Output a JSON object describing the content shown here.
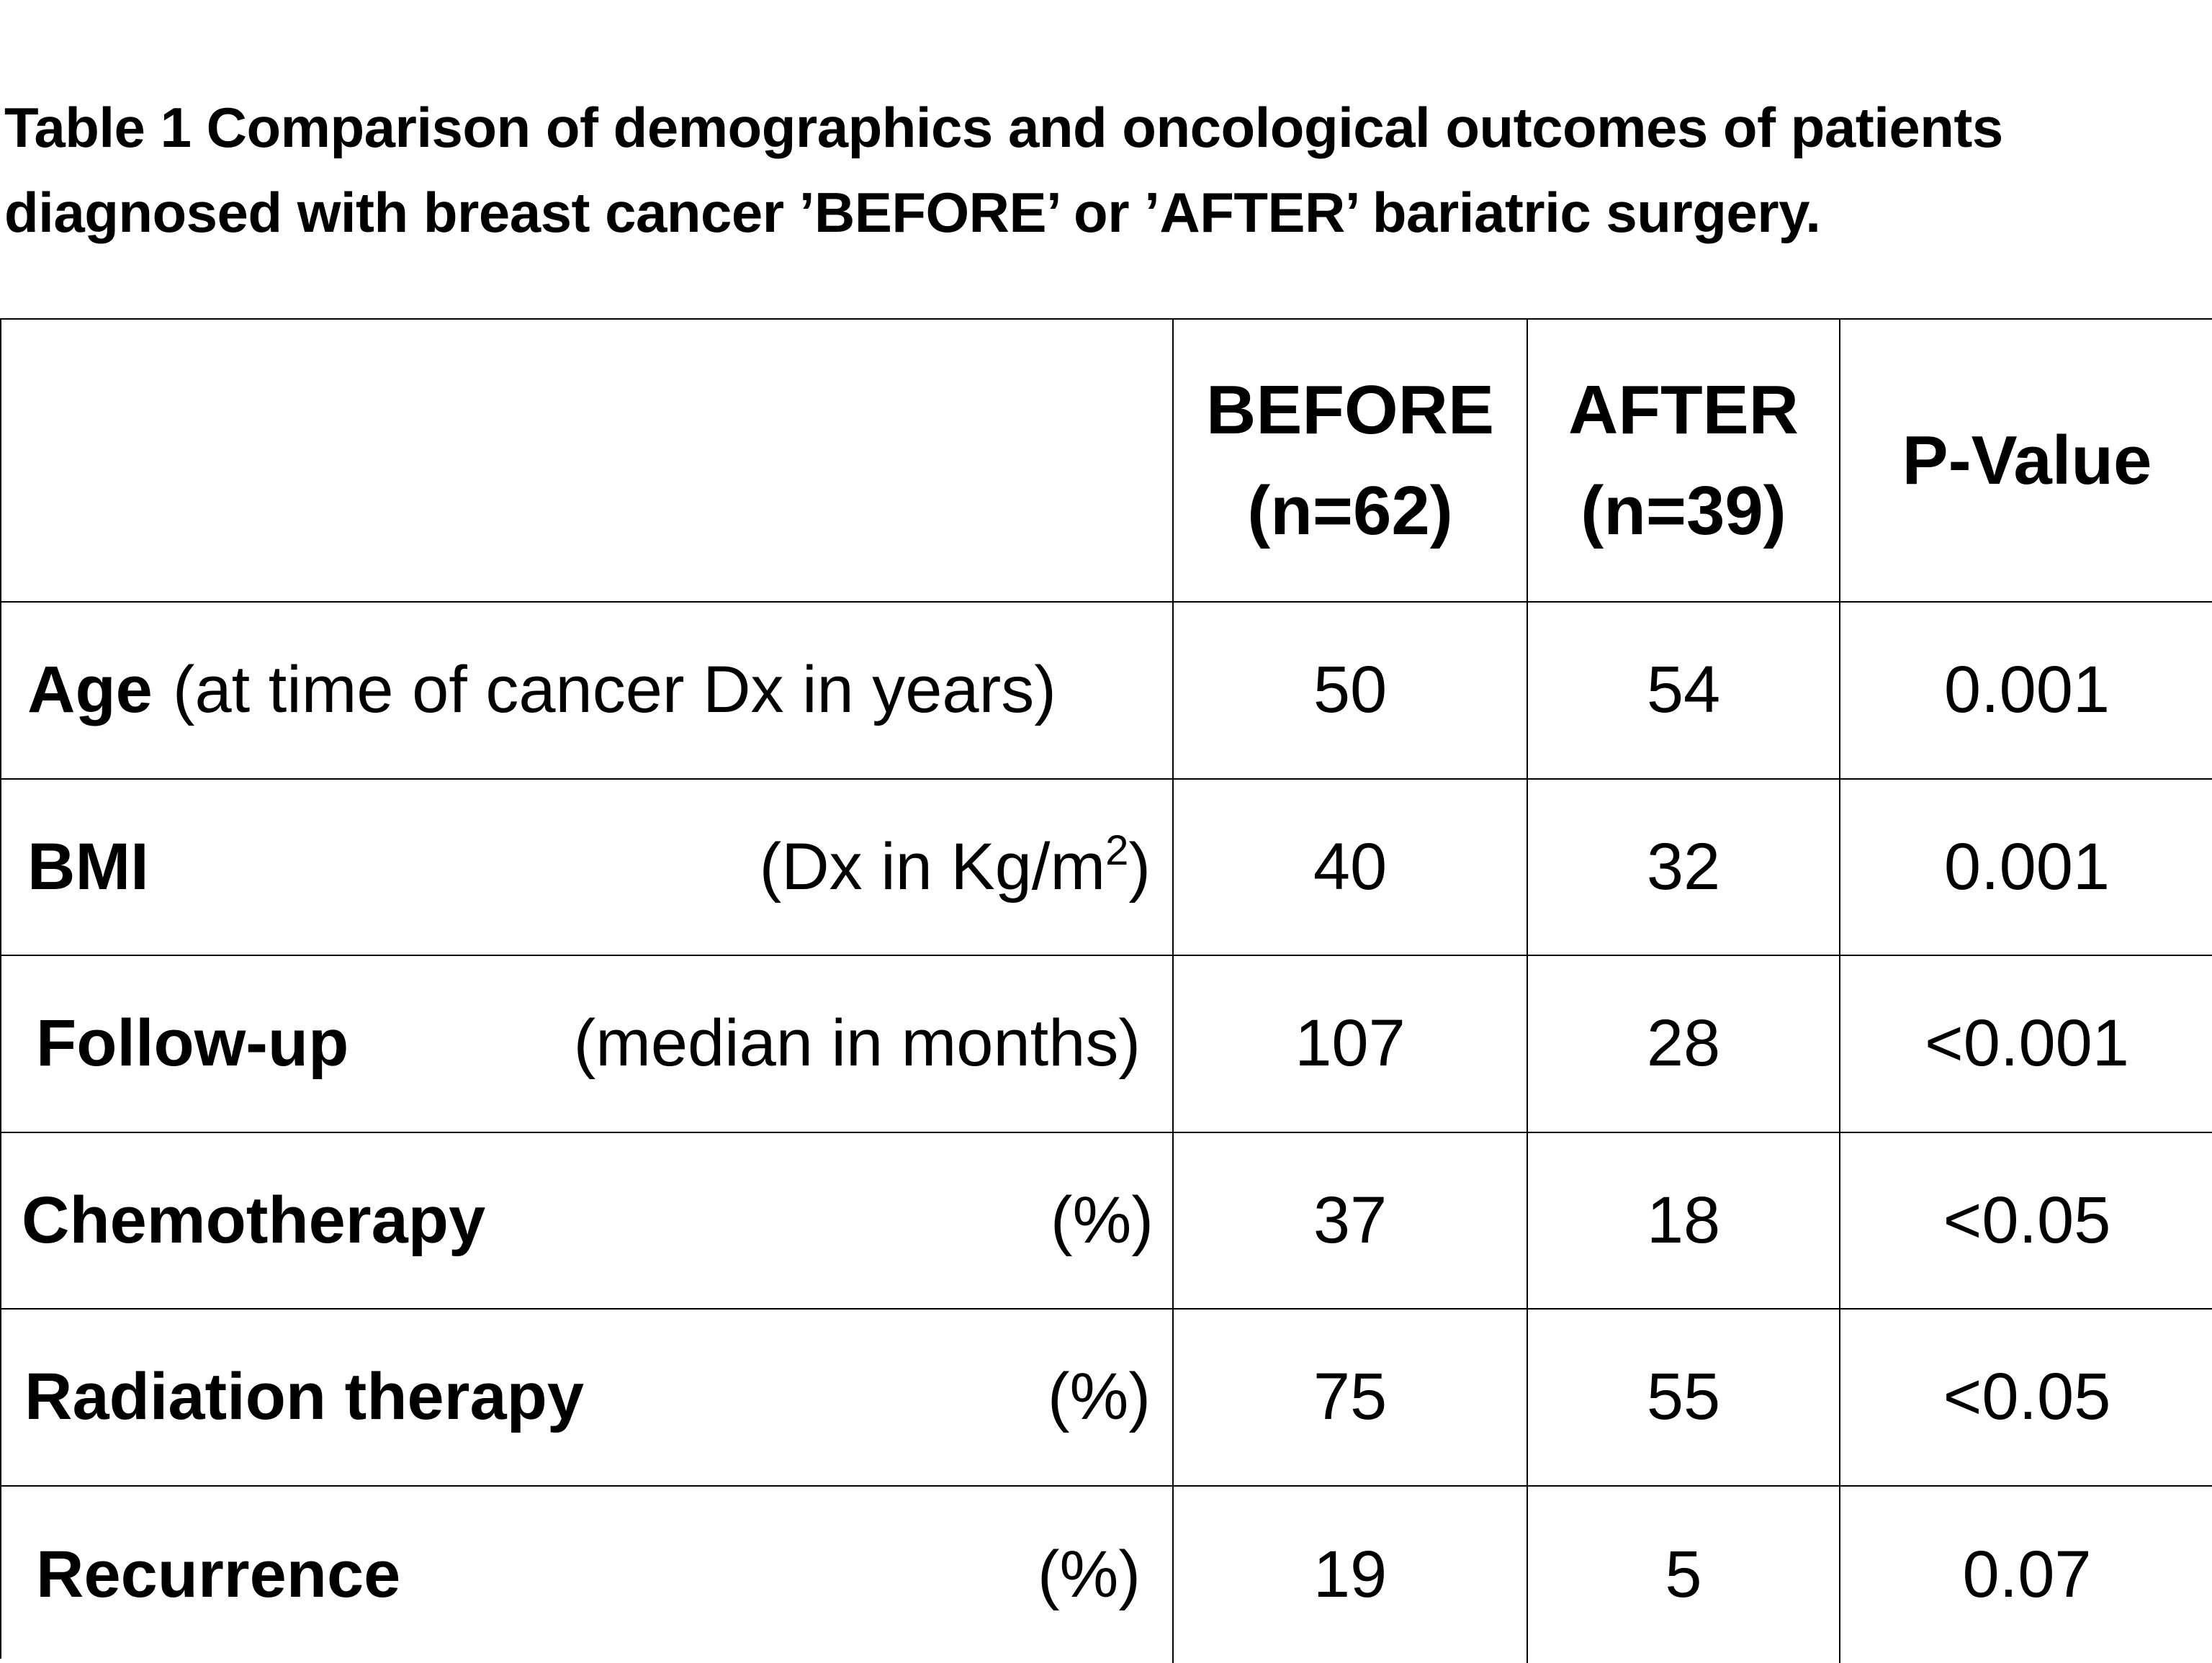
{
  "caption": {
    "line1": "Table 1 Comparison of demographics and oncological outcomes of patients",
    "line2": "diagnosed with breast cancer ’BEFORE’ or ’AFTER’ bariatric surgery."
  },
  "table": {
    "headers": {
      "before_label": "BEFORE",
      "before_n": "(n=62)",
      "after_label": "AFTER",
      "after_n": "(n=39)",
      "pvalue": "P-Value"
    },
    "rows": [
      {
        "name": "Age",
        "unit": "(at time of cancer Dx in years)",
        "before": "50",
        "after": "54",
        "p": "0.001"
      },
      {
        "name": "BMI",
        "unit_pre": "(Dx in Kg/m",
        "unit_sup": "2",
        "unit_post": ")",
        "before": "40",
        "after": "32",
        "p": "0.001"
      },
      {
        "name": "Follow-up",
        "unit": "(median in months)",
        "before": "107",
        "after": "28",
        "p": "<0.001"
      },
      {
        "name": "Chemotherapy",
        "unit": "(%)",
        "before": "37",
        "after": "18",
        "p": "<0.05"
      },
      {
        "name": "Radiation therapy",
        "unit": "(%)",
        "before": "75",
        "after": "55",
        "p": "<0.05"
      },
      {
        "name": "Recurrence",
        "unit": "(%)",
        "before": "19",
        "after": "5",
        "p": "0.07"
      }
    ]
  }
}
